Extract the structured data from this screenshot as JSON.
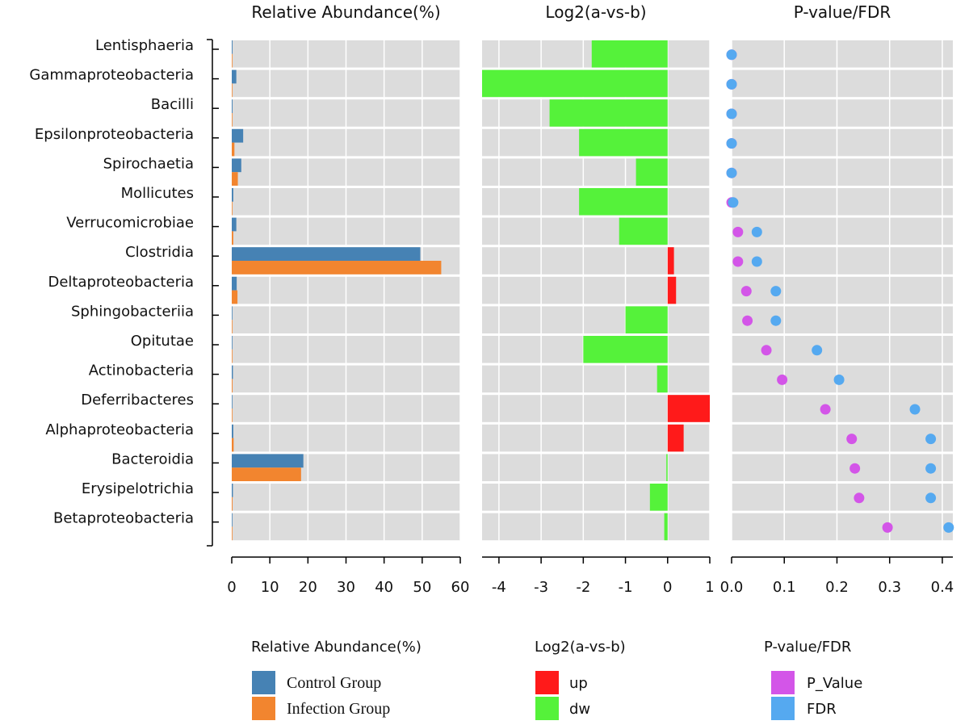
{
  "chart_data": {
    "type": "bar",
    "categories": [
      "Lentisphaeria",
      "Gammaproteobacteria",
      "Bacilli",
      "Epsilonproteobacteria",
      "Spirochaetia",
      "Mollicutes",
      "Verrucomicrobiae",
      "Clostridia",
      "Deltaproteobacteria",
      "Sphingobacteriia",
      "Opitutae",
      "Actinobacteria",
      "Deferribacteres",
      "Alphaproteobacteria",
      "Bacteroidia",
      "Erysipelotrichia",
      "Betaproteobacteria"
    ],
    "panels": [
      {
        "title": "Relative Abundance(%)",
        "type": "grouped-bar",
        "xlim": [
          0,
          60
        ],
        "ticks": [
          "0",
          "10",
          "20",
          "30",
          "40",
          "50",
          "60"
        ],
        "series": [
          {
            "name": "Control Group",
            "color": "#4682b4",
            "values": [
              0.2,
              1.2,
              0.2,
              3.0,
              2.5,
              0.4,
              1.2,
              49.5,
              1.3,
              0.1,
              0.0,
              0.3,
              0.1,
              0.4,
              18.8,
              0.3,
              0.1
            ]
          },
          {
            "name": "Infection Group",
            "color": "#f2852f",
            "values": [
              0.0,
              0.0,
              0.0,
              0.7,
              1.6,
              0.0,
              0.4,
              55.0,
              1.5,
              0.0,
              0.0,
              0.2,
              0.0,
              0.5,
              18.2,
              0.2,
              0.0
            ]
          }
        ]
      },
      {
        "title": "Log2(a-vs-b)",
        "type": "diverging-bar",
        "xlim": [
          -4.4,
          1.0
        ],
        "ticks": [
          "-4",
          "-3",
          "-2",
          "-1",
          "0",
          "1"
        ],
        "values": [
          -1.8,
          -4.4,
          -2.8,
          -2.1,
          -0.75,
          -2.1,
          -1.15,
          0.15,
          0.2,
          -1.0,
          -2.0,
          -0.25,
          1.0,
          0.38,
          -0.03,
          -0.42,
          -0.08
        ]
      },
      {
        "title": "P-value/FDR",
        "type": "dot",
        "xlim": [
          0.0,
          0.42
        ],
        "ticks": [
          "0.0",
          "0.1",
          "0.2",
          "0.3",
          "0.4"
        ],
        "series": [
          {
            "name": "P_Value",
            "color": "#d355e8",
            "values": [
              0.0,
              0.0,
              0.0,
              0.0,
              0.0,
              0.0,
              0.012,
              0.012,
              0.028,
              0.03,
              0.066,
              0.096,
              0.178,
              0.228,
              0.234,
              0.242,
              0.296
            ]
          },
          {
            "name": "FDR",
            "color": "#55a9f0",
            "values": [
              0.0,
              0.0,
              0.0,
              0.0,
              0.0,
              0.003,
              0.048,
              0.048,
              0.084,
              0.084,
              0.162,
              0.204,
              0.348,
              0.378,
              0.378,
              0.378,
              0.412
            ]
          }
        ]
      }
    ],
    "legends": [
      {
        "title": "Relative Abundance(%)",
        "items": [
          {
            "label": "Control Group",
            "color": "#4682b4"
          },
          {
            "label": "Infection Group",
            "color": "#f2852f"
          }
        ]
      },
      {
        "title": "Log2(a-vs-b)",
        "items": [
          {
            "label": "up",
            "color": "#ff1a1a"
          },
          {
            "label": "dw",
            "color": "#55f23a"
          }
        ]
      },
      {
        "title": "P-value/FDR",
        "items": [
          {
            "label": "P_Value",
            "color": "#d355e8"
          },
          {
            "label": "FDR",
            "color": "#55a9f0"
          }
        ]
      }
    ],
    "colors": {
      "up": "#ff1a1a",
      "dw": "#55f23a",
      "panel_bg": "#dcdcdc",
      "grid": "#ffffff"
    }
  }
}
